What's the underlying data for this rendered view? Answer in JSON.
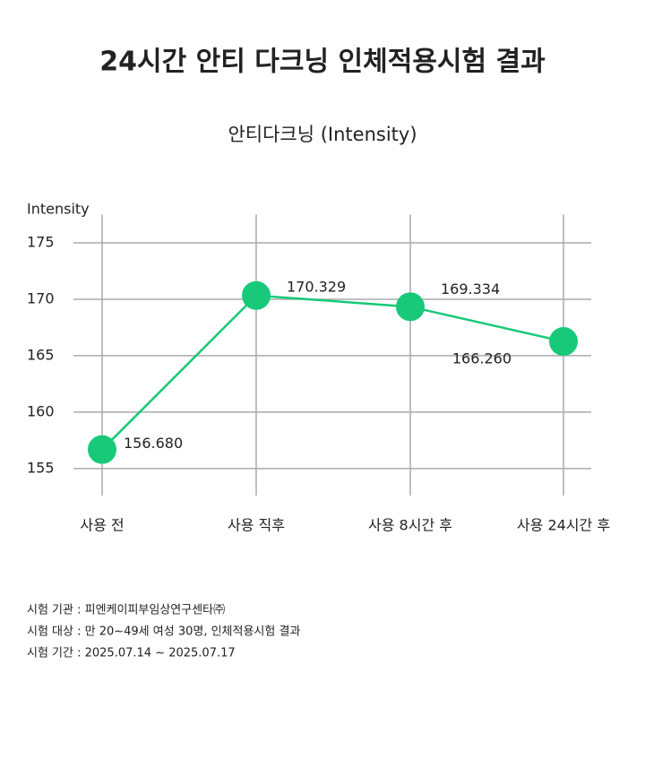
{
  "chart_data": {
    "type": "line",
    "title": "24시간 안티 다크닝 인체적용시험 결과",
    "subtitle": "안티다크닝 (Intensity)",
    "y_label": "Intensity",
    "categories": [
      "사용 전",
      "사용 직후",
      "사용 8시간 후",
      "사용 24시간 후"
    ],
    "series": [
      {
        "color": "#17c978",
        "values": [
          156.68,
          170.329,
          169.334,
          166.26
        ],
        "value_labels": [
          "156.680",
          "170.329",
          "169.334",
          "166.260"
        ]
      }
    ],
    "ylim": [
      153,
      177.5
    ],
    "yticks": [
      155,
      160,
      165,
      170,
      175
    ],
    "grid": true,
    "footnotes": [
      "시험 기관 : 피엔케이피부임상연구센타㈜",
      "시험 대상 : 만 20~49세 여성 30명, 인체적용시험 결과",
      "시험 기간 : 2025.07.14 ~ 2025.07.17"
    ]
  }
}
